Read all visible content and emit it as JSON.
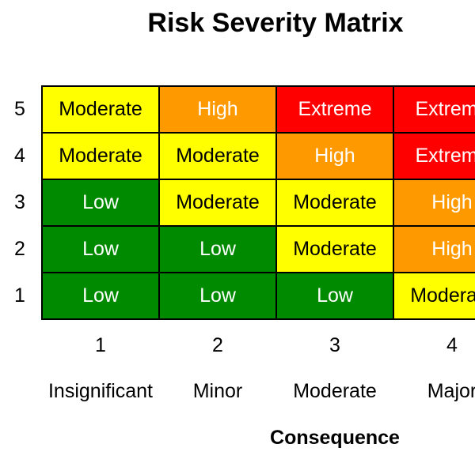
{
  "chart_data": {
    "type": "heatmap",
    "title": "Risk Severity Matrix",
    "xlabel": "Consequence",
    "x_ticks": [
      "1",
      "2",
      "3",
      "4"
    ],
    "x_categories": [
      "Insignificant",
      "Minor",
      "Moderate",
      "Major"
    ],
    "y_ticks": [
      "5",
      "4",
      "3",
      "2",
      "1"
    ],
    "rows": [
      {
        "likelihood": "5",
        "cells": [
          {
            "label": "Moderate",
            "level": "moderate"
          },
          {
            "label": "High",
            "level": "high"
          },
          {
            "label": "Extreme",
            "level": "extreme"
          },
          {
            "label": "Extreme",
            "level": "extreme"
          }
        ]
      },
      {
        "likelihood": "4",
        "cells": [
          {
            "label": "Moderate",
            "level": "moderate"
          },
          {
            "label": "Moderate",
            "level": "moderate"
          },
          {
            "label": "High",
            "level": "high"
          },
          {
            "label": "Extreme",
            "level": "extreme"
          }
        ]
      },
      {
        "likelihood": "3",
        "cells": [
          {
            "label": "Low",
            "level": "low"
          },
          {
            "label": "Moderate",
            "level": "moderate"
          },
          {
            "label": "Moderate",
            "level": "moderate"
          },
          {
            "label": "High",
            "level": "high"
          }
        ]
      },
      {
        "likelihood": "2",
        "cells": [
          {
            "label": "Low",
            "level": "low"
          },
          {
            "label": "Low",
            "level": "low"
          },
          {
            "label": "Moderate",
            "level": "moderate"
          },
          {
            "label": "High",
            "level": "high"
          }
        ]
      },
      {
        "likelihood": "1",
        "cells": [
          {
            "label": "Low",
            "level": "low"
          },
          {
            "label": "Low",
            "level": "low"
          },
          {
            "label": "Low",
            "level": "low"
          },
          {
            "label": "Moderate",
            "level": "moderate"
          }
        ]
      }
    ],
    "level_colors": {
      "low": {
        "bg": "#008A00",
        "text": "#FFFFFF"
      },
      "moderate": {
        "bg": "#FFFF00",
        "text": "#000000"
      },
      "high": {
        "bg": "#FF9900",
        "text": "#FFFFFF"
      },
      "extreme": {
        "bg": "#FF0000",
        "text": "#FFFFFF"
      }
    },
    "grid_border_color": "#000000",
    "layout": {
      "legend": "none",
      "grid": "off"
    }
  }
}
